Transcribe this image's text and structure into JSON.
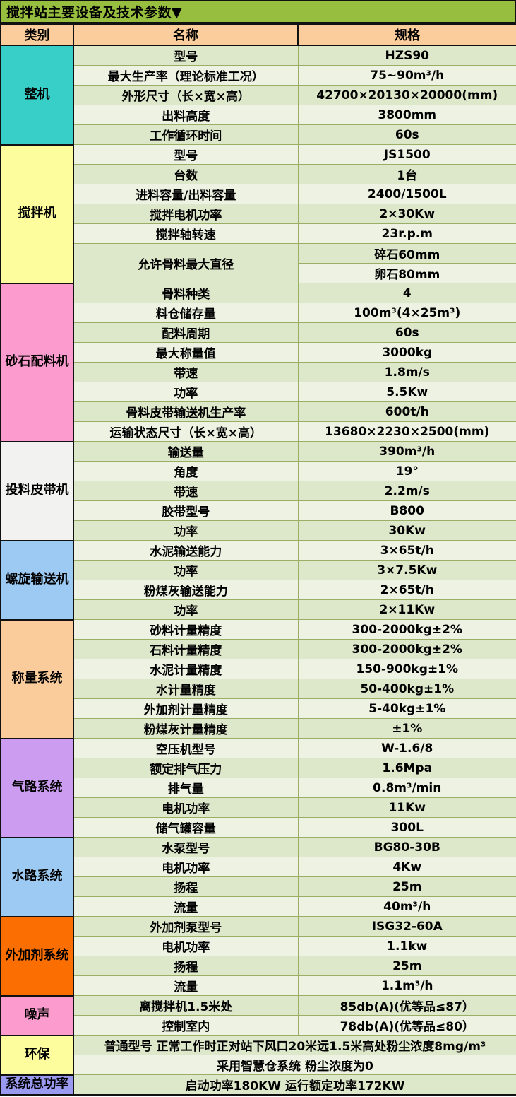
{
  "title": "搅拌站主要设备及技术参数▼",
  "columns": {
    "category": "类别",
    "name": "名称",
    "spec": "规格"
  },
  "colors": {
    "title_bg": "#97BE3E",
    "header_bg": "#FBCD9C",
    "row_odd_bg": "#DDE7CA",
    "row_even_bg": "#EEF2E3",
    "grid_line": "#9AAE66",
    "frame": "#111111"
  },
  "sections": [
    {
      "category": "整机",
      "color": "#38CFC9",
      "rows": [
        {
          "name": "型号",
          "spec": "HZS90"
        },
        {
          "name": "最大生产率（理论标准工况）",
          "spec": "75~90m³/h"
        },
        {
          "name": "外形尺寸（长×宽×高）",
          "spec": "42700×20130×20000(mm)"
        },
        {
          "name": "出料高度",
          "spec": "3800mm"
        },
        {
          "name": "工作循环时间",
          "spec": "60s"
        }
      ]
    },
    {
      "category": "搅拌机",
      "color": "#FDFD9E",
      "rows": [
        {
          "name": "型号",
          "spec": "JS1500"
        },
        {
          "name": "台数",
          "spec": "1台"
        },
        {
          "name": "进料容量/出料容量",
          "spec": "2400/1500L"
        },
        {
          "name": "搅拌电机功率",
          "spec": "2×30Kw"
        },
        {
          "name": "搅拌轴转速",
          "spec": "23r.p.m"
        },
        {
          "name": "允许骨料最大直径",
          "specs": [
            "碎石60mm",
            "卵石80mm"
          ]
        }
      ]
    },
    {
      "category": "砂石配料机",
      "color": "#FC9CCE",
      "rows": [
        {
          "name": "骨料种类",
          "spec": "4"
        },
        {
          "name": "料仓储存量",
          "spec": "100m³(4×25m³)"
        },
        {
          "name": "配料周期",
          "spec": "60s"
        },
        {
          "name": "最大称量值",
          "spec": "3000kg"
        },
        {
          "name": "带速",
          "spec": "1.8m/s"
        },
        {
          "name": "功率",
          "spec": "5.5Kw"
        },
        {
          "name": "骨料皮带输送机生产率",
          "spec": "600t/h"
        },
        {
          "name": "运输状态尺寸（长×宽×高）",
          "spec": "13680×2230×2500(mm)"
        }
      ]
    },
    {
      "category": "投料皮带机",
      "color": "#F2F2F0",
      "rows": [
        {
          "name": "输送量",
          "spec": "390m³/h"
        },
        {
          "name": "角度",
          "spec": "19°"
        },
        {
          "name": "带速",
          "spec": "2.2m/s"
        },
        {
          "name": "胶带型号",
          "spec": "B800"
        },
        {
          "name": "功率",
          "spec": "30Kw"
        }
      ]
    },
    {
      "category": "螺旋输送机",
      "color": "#9CCAF2",
      "rows": [
        {
          "name": "水泥输送能力",
          "spec": "3×65t/h"
        },
        {
          "name": "功率",
          "spec": "3×7.5Kw"
        },
        {
          "name": "粉煤灰输送能力",
          "spec": "2×65t/h"
        },
        {
          "name": "功率",
          "spec": "2×11Kw"
        }
      ]
    },
    {
      "category": "称量系统",
      "color": "#FACC9C",
      "rows": [
        {
          "name": "砂料计量精度",
          "spec": "300-2000kg±2%"
        },
        {
          "name": "石料计量精度",
          "spec": "300-2000kg±2%"
        },
        {
          "name": "水泥计量精度",
          "spec": "150-900kg±1%"
        },
        {
          "name": "水计量精度",
          "spec": "50-400kg±1%"
        },
        {
          "name": "外加剂计量精度",
          "spec": "5-40kg±1%"
        },
        {
          "name": "粉煤灰计量精度",
          "spec": "±1%"
        }
      ]
    },
    {
      "category": "气路系统",
      "color": "#CB9CF0",
      "rows": [
        {
          "name": "空压机型号",
          "spec": "W-1.6/8"
        },
        {
          "name": "额定排气压力",
          "spec": "1.6Mpa"
        },
        {
          "name": "排气量",
          "spec": "0.8m³/min"
        },
        {
          "name": "电机功率",
          "spec": "11Kw"
        },
        {
          "name": "储气罐容量",
          "spec": "300L"
        }
      ]
    },
    {
      "category": "水路系统",
      "color": "#9CCAF2",
      "rows": [
        {
          "name": "水泵型号",
          "spec": "BG80-30B"
        },
        {
          "name": "电机功率",
          "spec": "4Kw"
        },
        {
          "name": "扬程",
          "spec": "25m"
        },
        {
          "name": "流量",
          "spec": "40m³/h"
        }
      ]
    },
    {
      "category": "外加剂系统",
      "color": "#FB6E01",
      "rows": [
        {
          "name": "外加剂泵型号",
          "spec": "ISG32-60A"
        },
        {
          "name": "电机功率",
          "spec": "1.1kw"
        },
        {
          "name": "扬程",
          "spec": "25m"
        },
        {
          "name": "流量",
          "spec": "1.1m³/h"
        }
      ]
    },
    {
      "category": "噪声",
      "color": "#FC9CCE",
      "rows": [
        {
          "name": "离搅拌机1.5米处",
          "spec": "85db(A)(优等品≤87）"
        },
        {
          "name": "控制室内",
          "spec": "78db(A)(优等品≤80）"
        }
      ]
    },
    {
      "category": "环保",
      "color": "#FDFD9E",
      "rows": [
        {
          "full": "普通型号 正常工作时正对站下风口20米远1.5米高处粉尘浓度8mg/m³"
        },
        {
          "full": "采用智慧仓系统 粉尘浓度为0"
        }
      ]
    },
    {
      "category": "系统总功率",
      "color": "#9A9AF0",
      "rows": [
        {
          "full": "启动功率180KW 运行额定功率172KW"
        }
      ]
    }
  ]
}
